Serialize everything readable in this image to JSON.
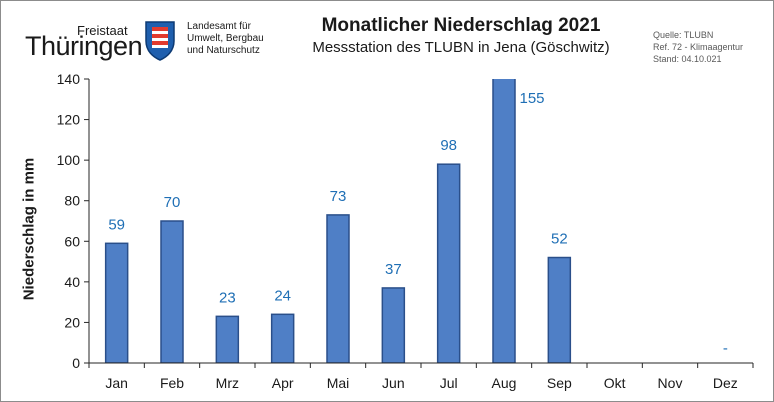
{
  "header": {
    "logo_small": "Freistaat",
    "logo_big": "Thüringen",
    "logo_lines": [
      "Landesamt für",
      "Umwelt, Bergbau",
      "und Naturschutz"
    ],
    "title": "Monatlicher Niederschlag 2021",
    "subtitle": "Messstation  des TLUBN  in Jena (Göschwitz)",
    "meta": [
      "Quelle: TLUBN",
      "Ref. 72 - Klimaagentur",
      "Stand: 04.10.021"
    ]
  },
  "colors": {
    "bar": "#4f7fc6",
    "bar_edge": "#2a4f8a",
    "data_label": "#1f6fb5"
  },
  "chart_data": {
    "type": "bar",
    "title": "Monatlicher Niederschlag 2021",
    "ylabel": "Niederschlag in mm",
    "xlabel": "",
    "ylim": [
      0,
      140
    ],
    "yticks": [
      0,
      20,
      40,
      60,
      80,
      100,
      120,
      140
    ],
    "grid": false,
    "categories": [
      "Jan",
      "Feb",
      "Mrz",
      "Apr",
      "Mai",
      "Jun",
      "Jul",
      "Aug",
      "Sep",
      "Okt",
      "Nov",
      "Dez"
    ],
    "values": [
      59,
      70,
      23,
      24,
      73,
      37,
      98,
      155,
      52,
      null,
      null,
      null
    ],
    "data_labels": [
      "59",
      "70",
      "23",
      "24",
      "73",
      "37",
      "98",
      "155",
      "52",
      "",
      "",
      "-"
    ]
  }
}
